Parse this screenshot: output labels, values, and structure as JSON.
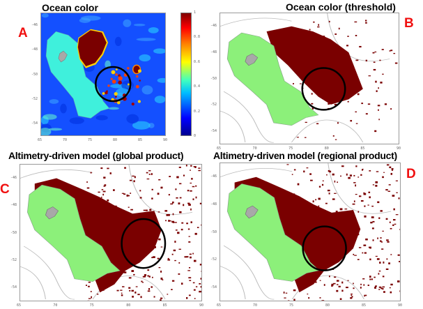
{
  "panels": [
    {
      "letter": "A",
      "title": "Ocean color",
      "type": "chlorophyll-colormap"
    },
    {
      "letter": "B",
      "title": "Ocean color (threshold)",
      "type": "threshold-mask"
    },
    {
      "letter": "C",
      "title": "Altimetry-driven model (global product)",
      "type": "model-mask"
    },
    {
      "letter": "D",
      "title": "Altimetry-driven model (regional product)",
      "type": "model-mask"
    }
  ],
  "axes": {
    "x_ticks": [
      "65",
      "70",
      "75",
      "80",
      "85",
      "90"
    ],
    "y_ticks": [
      "-46",
      "-48",
      "-50",
      "-52",
      "-54"
    ]
  },
  "colorbar": {
    "ticks": [
      "0",
      "0.2",
      "0.4",
      "0.6",
      "0.8",
      "1"
    ],
    "colormap": "jet"
  },
  "colors": {
    "letter": "#f01010",
    "bloom": "#7a0000",
    "plateau_A": "#3ff0dc",
    "plateau_model": "#8cf07a",
    "island": "#a8a8a8",
    "ocean_A": "#1450ff",
    "circle": "#000000"
  }
}
